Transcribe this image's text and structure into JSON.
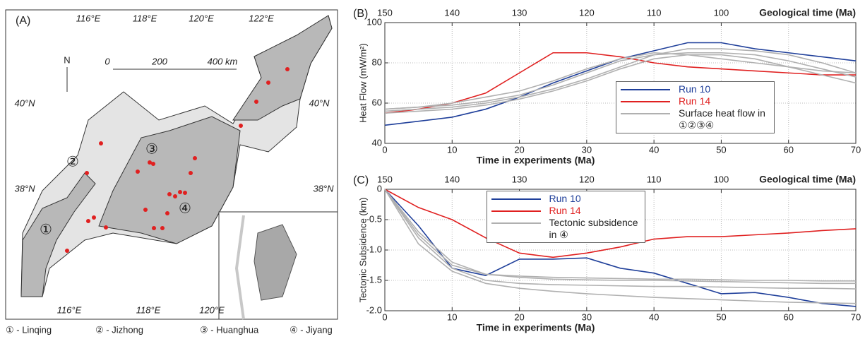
{
  "map": {
    "panel": "(A)",
    "lon_top": [
      "116°E",
      "118°E",
      "120°E",
      "122°E"
    ],
    "lon_bottom": [
      "116°E",
      "118°E",
      "120°E"
    ],
    "lat_left": [
      "40°N",
      "38°N"
    ],
    "lat_right": [
      "40°N",
      "38°N"
    ],
    "north": "N",
    "scale": [
      "0",
      "200",
      "400 km"
    ],
    "regions": [
      "①",
      "②",
      "③",
      "④"
    ],
    "legend": [
      "① - Linqing",
      "② - Jizhong",
      "③ - Huanghua",
      "④ - Jiyang"
    ]
  },
  "chart_data": [
    {
      "type": "line",
      "panel": "(B)",
      "x_label": "Time in experiments (Ma)",
      "y_label": "Heat Flow (mW/m²)",
      "x2_label": "Geological time (Ma)",
      "x": [
        0,
        5,
        10,
        15,
        20,
        25,
        30,
        35,
        40,
        45,
        50,
        55,
        60,
        65,
        70
      ],
      "xlim": [
        0,
        70
      ],
      "xticks": [
        0,
        10,
        20,
        30,
        40,
        50,
        60,
        70
      ],
      "x2lim": [
        150,
        80
      ],
      "x2ticks": [
        150,
        140,
        130,
        120,
        110,
        100
      ],
      "ylim": [
        40,
        100
      ],
      "yticks": [
        40,
        60,
        80,
        100
      ],
      "grid": true,
      "legend": "lower right",
      "series": [
        {
          "name": "Run 10",
          "color": "#1f3f9a",
          "values": [
            49,
            51,
            53,
            57,
            63,
            70,
            76,
            82,
            86,
            90,
            90,
            87,
            85,
            83,
            81
          ]
        },
        {
          "name": "Run 14",
          "color": "#e02020",
          "values": [
            55,
            57,
            60,
            65,
            75,
            85,
            85,
            83,
            80,
            78,
            77,
            76,
            75,
            74,
            74
          ]
        },
        {
          "name": "Surface heat flow in ①②③④",
          "color": "#b0b0b0",
          "values": [
            57,
            58,
            59,
            61,
            64,
            69,
            75,
            81,
            84,
            85,
            85,
            84,
            81,
            77,
            73
          ]
        },
        {
          "color": "#b0b0b0",
          "values": [
            56,
            57,
            58,
            60,
            63,
            67,
            72,
            78,
            84,
            87,
            87,
            86,
            84,
            80,
            75
          ]
        },
        {
          "color": "#b0b0b0",
          "values": [
            55,
            56,
            57,
            59,
            62,
            66,
            71,
            77,
            82,
            84,
            84,
            82,
            78,
            74,
            70
          ]
        },
        {
          "color": "#b0b0b0",
          "values": [
            57,
            58,
            60,
            63,
            66,
            71,
            77,
            82,
            85,
            84,
            82,
            80,
            78,
            76,
            75
          ]
        }
      ]
    },
    {
      "type": "line",
      "panel": "(C)",
      "x_label": "Time in experiments (Ma)",
      "y_label": "Tectonic Subsidence (km)",
      "x2_label": "Geological time (Ma)",
      "x": [
        0,
        5,
        10,
        15,
        20,
        25,
        30,
        35,
        40,
        45,
        50,
        55,
        60,
        65,
        70
      ],
      "xlim": [
        0,
        70
      ],
      "xticks": [
        0,
        10,
        20,
        30,
        40,
        50,
        60,
        70
      ],
      "x2lim": [
        150,
        80
      ],
      "x2ticks": [
        150,
        140,
        130,
        120,
        110,
        100
      ],
      "ylim": [
        -2,
        0
      ],
      "yticks": [
        0,
        -0.5,
        {
          "value": -1,
          "label": "-1.0"
        },
        -1.5,
        {
          "value": -2,
          "label": "-2.0"
        }
      ],
      "grid": true,
      "legend": "upper center",
      "series": [
        {
          "name": "Run 10",
          "color": "#1f3f9a",
          "values": [
            0,
            -0.6,
            -1.3,
            -1.42,
            -1.15,
            -1.15,
            -1.13,
            -1.3,
            -1.38,
            -1.55,
            -1.72,
            -1.7,
            -1.78,
            -1.88,
            -1.93
          ]
        },
        {
          "name": "Run 14",
          "color": "#e02020",
          "values": [
            0,
            -0.3,
            -0.5,
            -0.8,
            -1.05,
            -1.12,
            -1.05,
            -0.95,
            -0.82,
            -0.78,
            -0.78,
            -0.75,
            -0.72,
            -0.68,
            -0.65
          ]
        },
        {
          "name": "Tectonic subsidence in ④",
          "color": "#b0b0b0",
          "values": [
            0,
            -0.7,
            -1.2,
            -1.4,
            -1.45,
            -1.48,
            -1.49,
            -1.5,
            -1.5,
            -1.51,
            -1.52,
            -1.53,
            -1.54,
            -1.55,
            -1.55
          ]
        },
        {
          "color": "#b0b0b0",
          "values": [
            0,
            -0.8,
            -1.3,
            -1.5,
            -1.55,
            -1.57,
            -1.58,
            -1.59,
            -1.6,
            -1.6,
            -1.61,
            -1.62,
            -1.63,
            -1.63,
            -1.64
          ]
        },
        {
          "color": "#b0b0b0",
          "values": [
            0,
            -0.9,
            -1.35,
            -1.55,
            -1.63,
            -1.68,
            -1.72,
            -1.75,
            -1.78,
            -1.8,
            -1.82,
            -1.84,
            -1.86,
            -1.87,
            -1.88
          ]
        },
        {
          "color": "#b0b0b0",
          "values": [
            0,
            -0.75,
            -1.25,
            -1.4,
            -1.43,
            -1.45,
            -1.46,
            -1.47,
            -1.48,
            -1.48,
            -1.49,
            -1.5,
            -1.5,
            -1.51,
            -1.51
          ]
        }
      ]
    }
  ]
}
